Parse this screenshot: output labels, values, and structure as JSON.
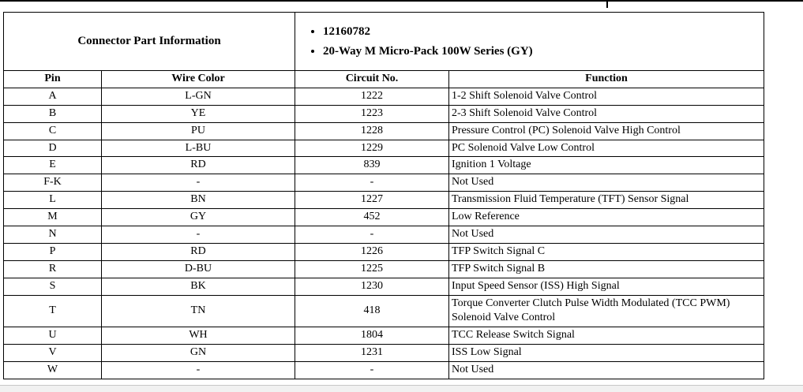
{
  "connector_info": {
    "label": "Connector Part Information",
    "bullets": [
      "12160782",
      "20-Way M Micro-Pack 100W Series (GY)"
    ]
  },
  "table": {
    "headers": [
      "Pin",
      "Wire Color",
      "Circuit No.",
      "Function"
    ],
    "rows": [
      [
        "A",
        "L-GN",
        "1222",
        "1-2 Shift Solenoid Valve Control"
      ],
      [
        "B",
        "YE",
        "1223",
        "2-3 Shift Solenoid Valve Control"
      ],
      [
        "C",
        "PU",
        "1228",
        "Pressure Control (PC) Solenoid Valve High Control"
      ],
      [
        "D",
        "L-BU",
        "1229",
        "PC Solenoid Valve Low Control"
      ],
      [
        "E",
        "RD",
        "839",
        "Ignition 1 Voltage"
      ],
      [
        "F-K",
        "-",
        "-",
        "Not Used"
      ],
      [
        "L",
        "BN",
        "1227",
        "Transmission Fluid Temperature (TFT) Sensor Signal"
      ],
      [
        "M",
        "GY",
        "452",
        "Low Reference"
      ],
      [
        "N",
        "-",
        "-",
        "Not Used"
      ],
      [
        "P",
        "RD",
        "1226",
        "TFP Switch Signal C"
      ],
      [
        "R",
        "D-BU",
        "1225",
        "TFP Switch Signal B"
      ],
      [
        "S",
        "BK",
        "1230",
        "Input Speed Sensor (ISS) High Signal"
      ],
      [
        "T",
        "TN",
        "418",
        "Torque Converter Clutch Pulse Width Modulated (TCC PWM) Solenoid Valve Control"
      ],
      [
        "U",
        "WH",
        "1804",
        "TCC Release Switch Signal"
      ],
      [
        "V",
        "GN",
        "1231",
        "ISS Low Signal"
      ],
      [
        "W",
        "-",
        "-",
        "Not Used"
      ]
    ]
  }
}
